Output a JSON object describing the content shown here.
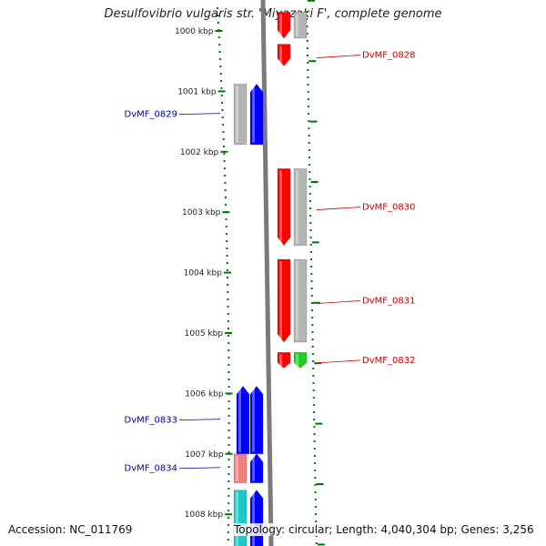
{
  "title": "Desulfovibrio vulgaris str. 'Miyazaki F', complete genome",
  "footer": {
    "accession": "Accession: NC_011769",
    "topology": "Topology: circular; Length: 4,040,304 bp; Genes: 3,256"
  },
  "ruler": {
    "unit": "kbp",
    "ticks": [
      {
        "kbp": 1000,
        "label": "1000 kbp"
      },
      {
        "kbp": 1001,
        "label": "1001 kbp"
      },
      {
        "kbp": 1002,
        "label": "1002 kbp"
      },
      {
        "kbp": 1003,
        "label": "1003 kbp"
      },
      {
        "kbp": 1004,
        "label": "1004 kbp"
      },
      {
        "kbp": 1005,
        "label": "1005 kbp"
      },
      {
        "kbp": 1006,
        "label": "1006 kbp"
      },
      {
        "kbp": 1007,
        "label": "1007 kbp"
      },
      {
        "kbp": 1008,
        "label": "1008 kbp"
      }
    ]
  },
  "colors": {
    "red": "#ff0000",
    "blue": "#0000ff",
    "grey": "#b4b4b4",
    "green": "#22cc22",
    "pink": "#f08080",
    "cyan": "#20c8c8",
    "tick_green": "#007700",
    "backbone": "#7a7a7a",
    "blue_label": "#0000aa",
    "red_label": "#cc0000"
  },
  "genes": [
    {
      "id": "DvMF_0828",
      "side": "right",
      "strand": "reverse",
      "feature": "cds",
      "start_kbp": 999.69,
      "end_kbp": 1000.12,
      "label": "",
      "color": "red"
    },
    {
      "id": "DvMF_0828",
      "side": "right",
      "strand": "reverse",
      "feature": "gene",
      "start_kbp": 999.69,
      "end_kbp": 1000.12,
      "label": "",
      "color": "grey"
    },
    {
      "id": "DvMF_0828",
      "side": "right",
      "strand": "forward",
      "feature": "cds",
      "start_kbp": 1000.22,
      "end_kbp": 1000.58,
      "label": "DvMF_0828",
      "color": "red"
    },
    {
      "id": "DvMF_0829",
      "side": "left",
      "strand": "forward",
      "feature": "cds",
      "start_kbp": 1000.88,
      "end_kbp": 1001.88,
      "label": "DvMF_0829",
      "color": "blue"
    },
    {
      "id": "DvMF_0829",
      "side": "left",
      "strand": "forward",
      "feature": "gene",
      "start_kbp": 1000.88,
      "end_kbp": 1001.88,
      "label": "",
      "color": "grey"
    },
    {
      "id": "DvMF_0830",
      "side": "right",
      "strand": "forward",
      "feature": "cds",
      "start_kbp": 1002.28,
      "end_kbp": 1003.55,
      "label": "DvMF_0830",
      "color": "red"
    },
    {
      "id": "DvMF_0830",
      "side": "right",
      "strand": "forward",
      "feature": "gene",
      "start_kbp": 1002.28,
      "end_kbp": 1003.55,
      "label": "",
      "color": "grey"
    },
    {
      "id": "DvMF_0831",
      "side": "right",
      "strand": "forward",
      "feature": "cds",
      "start_kbp": 1003.78,
      "end_kbp": 1005.15,
      "label": "DvMF_0831",
      "color": "red"
    },
    {
      "id": "DvMF_0831",
      "side": "right",
      "strand": "forward",
      "feature": "gene",
      "start_kbp": 1003.78,
      "end_kbp": 1005.15,
      "label": "",
      "color": "grey"
    },
    {
      "id": "DvMF_0832",
      "side": "right",
      "strand": "forward",
      "feature": "cds",
      "start_kbp": 1005.32,
      "end_kbp": 1005.58,
      "label": "DvMF_0832",
      "color": "red"
    },
    {
      "id": "DvMF_0832",
      "side": "right",
      "strand": "forward",
      "feature": "rna",
      "start_kbp": 1005.32,
      "end_kbp": 1005.58,
      "label": "",
      "color": "green"
    },
    {
      "id": "DvMF_0833",
      "side": "left",
      "strand": "forward",
      "feature": "cds",
      "start_kbp": 1005.88,
      "end_kbp": 1007.0,
      "label": "DvMF_0833",
      "color": "blue"
    },
    {
      "id": "DvMF_0833",
      "side": "left",
      "strand": "forward",
      "feature": "cds",
      "start_kbp": 1005.88,
      "end_kbp": 1007.0,
      "label": "",
      "color": "blue"
    },
    {
      "id": "DvMF_0834",
      "side": "left",
      "strand": "forward",
      "feature": "cds",
      "start_kbp": 1007.0,
      "end_kbp": 1007.48,
      "label": "DvMF_0834",
      "color": "blue"
    },
    {
      "id": "DvMF_0834",
      "side": "left",
      "strand": "forward",
      "feature": "gene",
      "start_kbp": 1007.0,
      "end_kbp": 1007.48,
      "label": "",
      "color": "pink"
    },
    {
      "id": "DvMF_0835",
      "side": "left",
      "strand": "forward",
      "feature": "cds",
      "start_kbp": 1007.6,
      "end_kbp": 1008.6,
      "label": "",
      "color": "blue"
    },
    {
      "id": "DvMF_0835",
      "side": "left",
      "strand": "forward",
      "feature": "gene",
      "start_kbp": 1007.6,
      "end_kbp": 1008.6,
      "label": "",
      "color": "cyan"
    }
  ]
}
